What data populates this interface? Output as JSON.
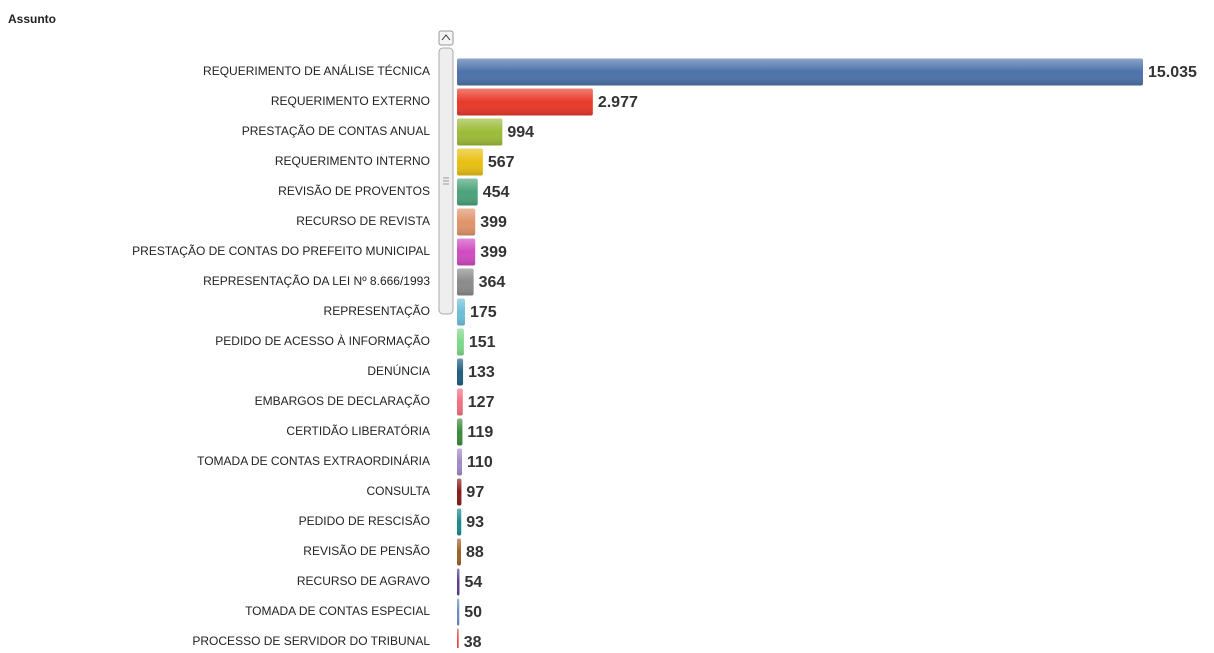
{
  "chart_data": {
    "type": "bar",
    "orientation": "horizontal",
    "title": "Assunto",
    "categories": [
      "REQUERIMENTO DE ANÁLISE TÉCNICA",
      "REQUERIMENTO  EXTERNO",
      "PRESTAÇÃO DE CONTAS ANUAL",
      "REQUERIMENTO INTERNO",
      "REVISÃO DE PROVENTOS",
      "RECURSO DE REVISTA",
      "PRESTAÇÃO DE CONTAS DO PREFEITO MUNICIPAL",
      "REPRESENTAÇÃO DA LEI Nº 8.666/1993",
      "REPRESENTAÇÃO",
      "PEDIDO DE ACESSO À INFORMAÇÃO",
      "DENÚNCIA",
      "EMBARGOS DE DECLARAÇÃO",
      "CERTIDÃO LIBERATÓRIA",
      "TOMADA DE CONTAS EXTRAORDINÁRIA",
      "CONSULTA",
      "PEDIDO DE RESCISÃO",
      "REVISÃO DE PENSÃO",
      "RECURSO DE AGRAVO",
      "TOMADA DE CONTAS ESPECIAL",
      "PROCESSO DE SERVIDOR DO TRIBUNAL"
    ],
    "values": [
      15035,
      2977,
      994,
      567,
      454,
      399,
      399,
      364,
      175,
      151,
      133,
      127,
      119,
      110,
      97,
      93,
      88,
      54,
      50,
      38
    ],
    "value_labels": [
      "15.035",
      "2.977",
      "994",
      "567",
      "454",
      "399",
      "399",
      "364",
      "175",
      "151",
      "133",
      "127",
      "119",
      "110",
      "97",
      "93",
      "88",
      "54",
      "50",
      "38"
    ],
    "colors": [
      "#4d72a8",
      "#e8392a",
      "#9cbb38",
      "#e8c012",
      "#4aa37a",
      "#e0946a",
      "#d04bc0",
      "#8a8a8a",
      "#6cc0d8",
      "#7ed88a",
      "#1f5f7f",
      "#f07080",
      "#3a8a3a",
      "#a08ac8",
      "#8a1a1a",
      "#1a8a8a",
      "#a0602a",
      "#5a3a8a",
      "#6a8ac0",
      "#e84a3a"
    ]
  }
}
